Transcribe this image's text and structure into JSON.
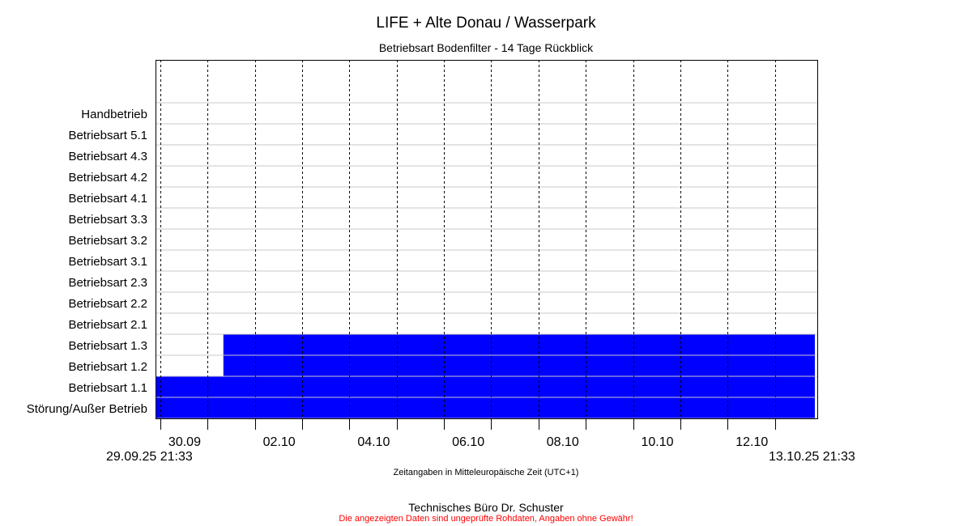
{
  "title": "LIFE + Alte Donau / Wasserpark",
  "subtitle": "Betriebsart Bodenfilter - 14 Tage Rückblick",
  "timezone_note": "Zeitangaben in Mitteleuropäische Zeit (UTC+1)",
  "range_start_label": "29.09.25 21:33",
  "range_end_label": "13.10.25 21:33",
  "footer_company": "Technisches Büro Dr. Schuster",
  "footer_disclaimer": "Die angezeigten Daten sind ungeprüfte Rohdaten, Angaben ohne Gewähr!",
  "colors": {
    "active": "#0000ff",
    "footer_disclaimer": "#ff0000"
  },
  "chart_data": {
    "type": "timeline",
    "x_range": [
      "2025-09-29 21:33",
      "2025-10-13 21:33"
    ],
    "x_tick_labels": [
      "30.09",
      "02.10",
      "04.10",
      "06.10",
      "08.10",
      "10.10",
      "12.10"
    ],
    "x_tick_dates": [
      "2025-09-30",
      "2025-10-01",
      "2025-10-02",
      "2025-10-03",
      "2025-10-04",
      "2025-10-05",
      "2025-10-06",
      "2025-10-07",
      "2025-10-08",
      "2025-10-09",
      "2025-10-10",
      "2025-10-11",
      "2025-10-12",
      "2025-10-13"
    ],
    "categories": [
      "Handbetrieb",
      "Betriebsart  5.1",
      "Betriebsart  4.3",
      "Betriebsart  4.2",
      "Betriebsart  4.1",
      "Betriebsart  3.3",
      "Betriebsart  3.2",
      "Betriebsart  3.1",
      "Betriebsart  2.3",
      "Betriebsart  2.2",
      "Betriebsart  2.1",
      "Betriebsart  1.3",
      "Betriebsart  1.2",
      "Betriebsart  1.1",
      "Störung/Außer Betrieb"
    ],
    "active_intervals": [
      {
        "category": "Betriebsart  1.3",
        "start": "2025-10-01 08:00",
        "end": "2025-10-13 21:33"
      },
      {
        "category": "Betriebsart  1.2",
        "start": "2025-10-01 08:00",
        "end": "2025-10-13 21:33"
      },
      {
        "category": "Betriebsart  1.1",
        "start": "2025-09-29 21:33",
        "end": "2025-10-13 21:33"
      },
      {
        "category": "Störung/Außer Betrieb",
        "start": "2025-09-29 21:33",
        "end": "2025-10-13 21:33"
      }
    ],
    "grid": true
  }
}
